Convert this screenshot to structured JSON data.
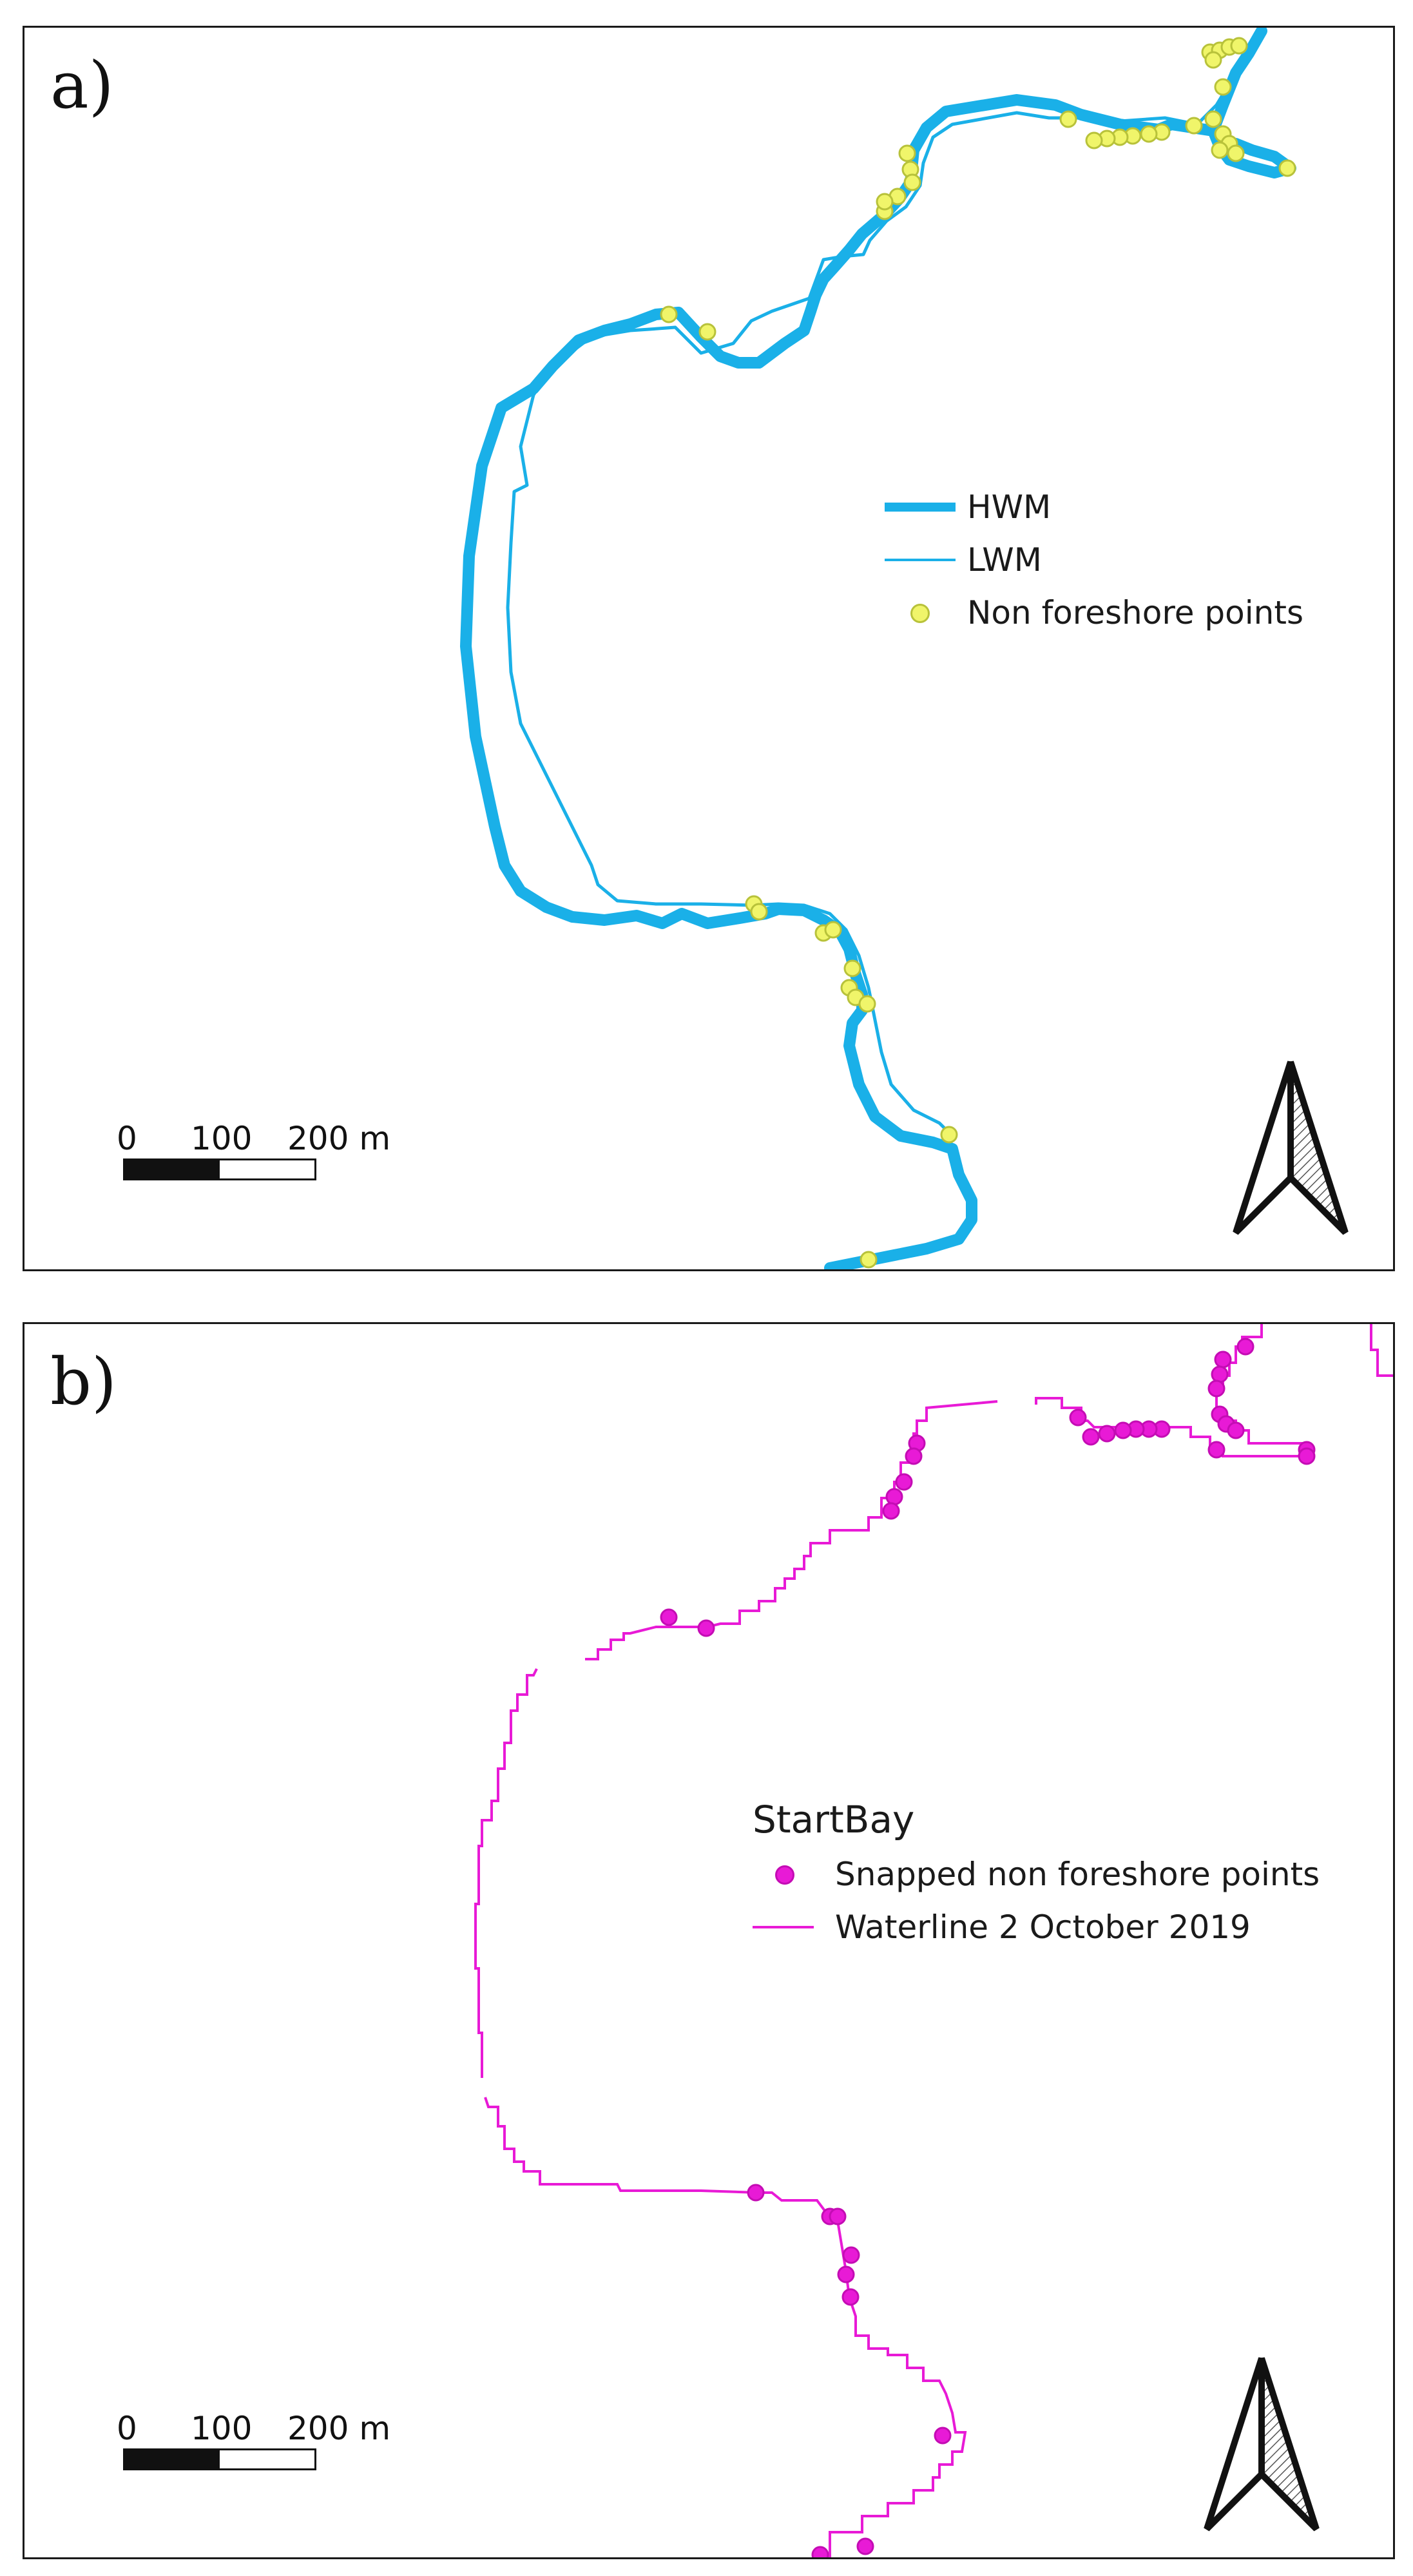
{
  "panels": [
    {
      "label": "a)",
      "legend": {
        "title": "",
        "items": [
          {
            "label": "HWM",
            "kind": "line-thick",
            "color": "#1ab0e8"
          },
          {
            "label": "LWM",
            "kind": "line-thin",
            "color": "#1ab0e8"
          },
          {
            "label": "Non foreshore points",
            "kind": "point",
            "color": "#f0f56a",
            "stroke": "#b8c23a"
          }
        ]
      },
      "scale": {
        "labels": [
          "0",
          "100",
          "200 m"
        ]
      },
      "north_arrow": "north-arrow-icon"
    },
    {
      "label": "b)",
      "legend": {
        "title": "StartBay",
        "items": [
          {
            "label": "Snapped non foreshore points",
            "kind": "point",
            "color": "#e81ad6",
            "stroke": "#c40cb4"
          },
          {
            "label": "Waterline 2 October 2019",
            "kind": "line-thin",
            "color": "#e81ad6"
          }
        ]
      },
      "scale": {
        "labels": [
          "0",
          "100",
          "200 m"
        ]
      },
      "north_arrow": "north-arrow-icon"
    }
  ]
}
